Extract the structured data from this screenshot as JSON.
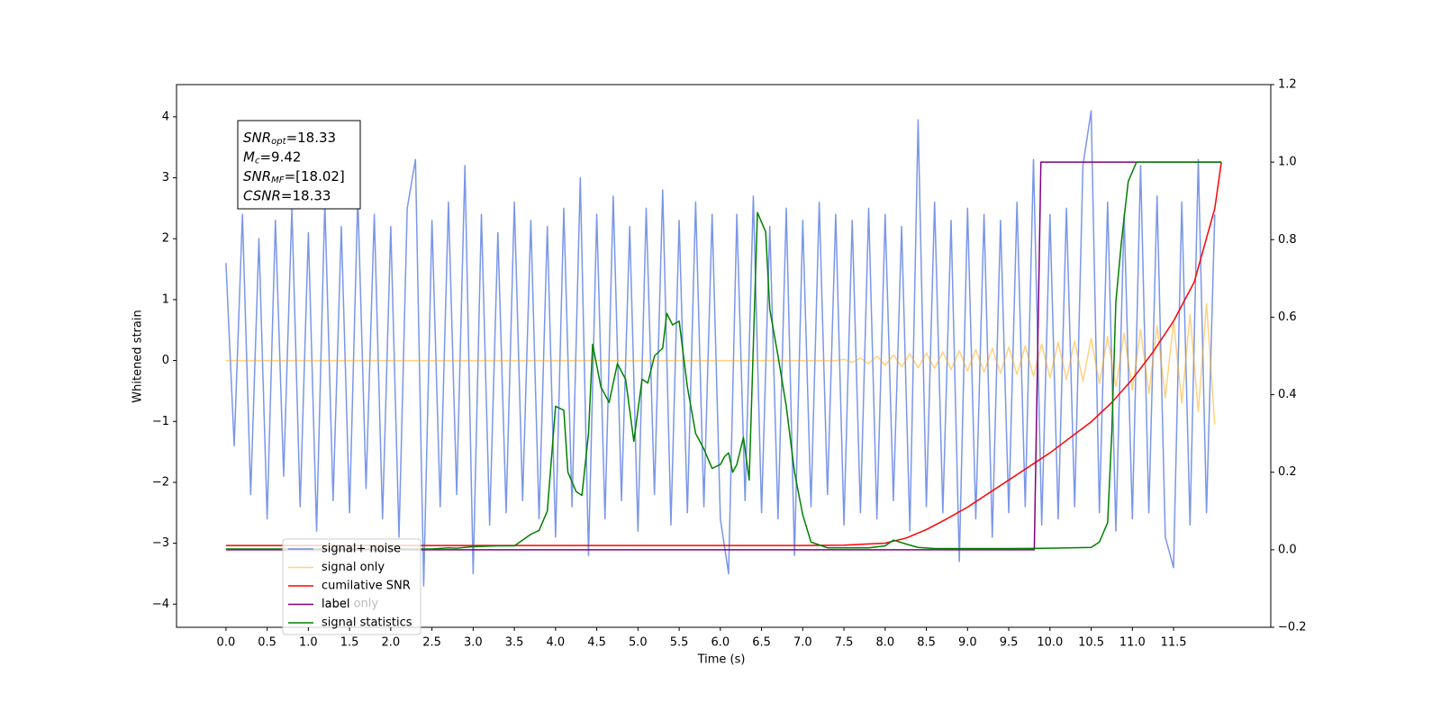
{
  "chart_data": {
    "type": "line",
    "xlabel": "Time (s)",
    "ylabel": "Whitened strain",
    "xlim": [
      -0.6,
      12.68
    ],
    "ylim": [
      -4.38,
      4.53
    ],
    "y2lim": [
      -0.2,
      1.2
    ],
    "xticks": [
      {
        "value": 0,
        "label": "0.0"
      },
      0.5,
      {
        "value": 1,
        "label": "1.0"
      },
      1.5,
      {
        "value": 2,
        "label": "2.0"
      },
      2.5,
      {
        "value": 3,
        "label": "3.0"
      },
      3.5,
      {
        "value": 4,
        "label": "4.0"
      },
      4.5,
      {
        "value": 5,
        "label": "5.0"
      },
      5.5,
      {
        "value": 6,
        "label": "6.0"
      },
      6.5,
      {
        "value": 7,
        "label": "7.0"
      },
      7.5,
      {
        "value": 8,
        "label": "8.0"
      },
      8.5,
      {
        "value": 9,
        "label": "9.0"
      },
      9.5,
      {
        "value": 10,
        "label": "10.0"
      },
      10.5,
      {
        "value": 11,
        "label": "11.0"
      },
      11.5
    ],
    "yticks": [
      {
        "value": -4,
        "label": "−4"
      },
      {
        "value": -3,
        "label": "−3"
      },
      {
        "value": -2,
        "label": "−2"
      },
      {
        "value": -1,
        "label": "−1"
      },
      0,
      1,
      2,
      3,
      4
    ],
    "y2ticks": [
      {
        "value": -0.2,
        "label": "−0.2"
      },
      {
        "value": 0,
        "label": "0.0"
      },
      0.2,
      0.4,
      0.6,
      0.8,
      {
        "value": 1,
        "label": "1.0"
      },
      1.2
    ],
    "legend": "lower left",
    "legend_hidden_text": "label only",
    "annotation": [
      {
        "var": "SNR",
        "sub": "opt",
        "text": "=18.33"
      },
      {
        "var": "M",
        "sub": "c",
        "text": "=9.42"
      },
      {
        "var": "SNR",
        "sub": "MF",
        "text": "=[18.02]"
      },
      {
        "var": "CSNR",
        "text": "=18.33"
      }
    ],
    "x": [
      0,
      0.1,
      0.2,
      0.3,
      0.4,
      0.5,
      0.6,
      0.7,
      0.8,
      0.9,
      1,
      1.1,
      1.2,
      1.3,
      1.4,
      1.5,
      1.6,
      1.7,
      1.8,
      1.9,
      2,
      2.1,
      2.2,
      2.3,
      2.4,
      2.5,
      2.6,
      2.7,
      2.8,
      2.9,
      3,
      3.1,
      3.2,
      3.3,
      3.4,
      3.5,
      3.6,
      3.7,
      3.8,
      3.9,
      4,
      4.1,
      4.2,
      4.3,
      4.4,
      4.5,
      4.6,
      4.7,
      4.8,
      4.9,
      5,
      5.1,
      5.2,
      5.3,
      5.4,
      5.5,
      5.6,
      5.7,
      5.8,
      5.9,
      6,
      6.1,
      6.2,
      6.3,
      6.4,
      6.5,
      6.6,
      6.7,
      6.8,
      6.9,
      7,
      7.1,
      7.2,
      7.3,
      7.4,
      7.5,
      7.6,
      7.7,
      7.8,
      7.9,
      8,
      8.1,
      8.2,
      8.3,
      8.4,
      8.5,
      8.6,
      8.7,
      8.8,
      8.9,
      9,
      9.1,
      9.2,
      9.3,
      9.4,
      9.5,
      9.6,
      9.7,
      9.8,
      9.9,
      10,
      10.1,
      10.2,
      10.3,
      10.4,
      10.5,
      10.6,
      10.7,
      10.8,
      10.9,
      11,
      11.1,
      11.2,
      11.3,
      11.4,
      11.5,
      11.6,
      11.7,
      11.8,
      11.9,
      12
    ],
    "series": [
      {
        "name": "signal+ noise",
        "color": "#4169e1",
        "alpha": 0.7,
        "values": [
          1.6,
          -1.4,
          2.4,
          -2.2,
          2.0,
          -2.6,
          2.3,
          -1.9,
          2.5,
          -2.4,
          2.1,
          -2.8,
          2.6,
          -2.3,
          2.2,
          -2.5,
          2.7,
          -2.1,
          2.4,
          -2.6,
          2.2,
          -2.9,
          2.5,
          3.3,
          -3.7,
          2.3,
          -2.4,
          2.6,
          -2.2,
          3.2,
          -3.5,
          2.4,
          -2.7,
          2.1,
          -2.5,
          2.6,
          -2.3,
          2.3,
          -2.6,
          2.2,
          -2.9,
          2.5,
          -2.4,
          3.0,
          -3.2,
          2.4,
          -2.6,
          2.7,
          -2.3,
          2.2,
          -2.8,
          2.5,
          -2.2,
          2.8,
          -2.7,
          2.3,
          -2.5,
          2.6,
          -2.4,
          2.4,
          -2.6,
          -3.5,
          2.4,
          -2.3,
          2.7,
          -2.5,
          2.2,
          -2.6,
          2.5,
          -3.2,
          2.3,
          -2.4,
          2.6,
          -2.2,
          2.4,
          -2.7,
          2.3,
          -2.5,
          2.5,
          -2.6,
          2.4,
          -2.3,
          2.2,
          -2.8,
          3.95,
          -2.4,
          2.6,
          -2.5,
          2.3,
          -3.3,
          2.5,
          -2.6,
          2.4,
          -2.9,
          2.3,
          -2.5,
          2.6,
          -2.4,
          3.3,
          -2.7,
          2.4,
          -2.6,
          2.5,
          -2.4,
          3.2,
          4.1,
          -2.5,
          2.6,
          -2.8,
          2.4,
          -2.6,
          3.2,
          -2.5,
          2.7,
          -2.9,
          -3.4,
          2.6,
          -2.7,
          3.3,
          -2.5,
          2.4
        ]
      },
      {
        "name": "signal only",
        "color": "#ffa500",
        "alpha": 0.5,
        "values": [
          0,
          0,
          0,
          0,
          0,
          0,
          0,
          0,
          0,
          0,
          0,
          0,
          0,
          0,
          0,
          0,
          0,
          0,
          0,
          0,
          0,
          0,
          0,
          0,
          0,
          0,
          0,
          0,
          0,
          0,
          0,
          0,
          0,
          0,
          0,
          0,
          0,
          0,
          0,
          0,
          0,
          0,
          0,
          0,
          0,
          0,
          0,
          0,
          0,
          0,
          0,
          0,
          0,
          0,
          0,
          0,
          0,
          0,
          0,
          0,
          0,
          0,
          0,
          0,
          0,
          0,
          0,
          0,
          0,
          0,
          0,
          0,
          0,
          0,
          0,
          0.02,
          -0.03,
          0.04,
          -0.05,
          0.07,
          -0.08,
          0.09,
          -0.1,
          0.11,
          -0.12,
          0.12,
          -0.13,
          0.14,
          -0.15,
          0.16,
          -0.17,
          0.18,
          -0.19,
          0.2,
          -0.21,
          0.22,
          -0.23,
          0.24,
          -0.26,
          0.27,
          -0.28,
          0.3,
          -0.31,
          0.32,
          -0.34,
          0.36,
          -0.38,
          0.4,
          -0.43,
          0.45,
          -0.48,
          0.51,
          -0.54,
          0.57,
          -0.61,
          0.65,
          -0.7,
          0.76,
          -0.84,
          0.94,
          -1.05
        ]
      },
      {
        "name": "cumilative SNR",
        "color": "#ff0000",
        "axis": "y2",
        "x": [
          0,
          1,
          2,
          3,
          4,
          5,
          6,
          7,
          7.5,
          8,
          8.25,
          8.5,
          8.75,
          9,
          9.25,
          9.5,
          9.75,
          10,
          10.25,
          10.5,
          10.75,
          11,
          11.25,
          11.5,
          11.75,
          12,
          12.08
        ],
        "values": [
          0.011,
          0.011,
          0.011,
          0.011,
          0.011,
          0.011,
          0.011,
          0.011,
          0.012,
          0.017,
          0.03,
          0.052,
          0.08,
          0.11,
          0.145,
          0.18,
          0.215,
          0.25,
          0.29,
          0.33,
          0.38,
          0.44,
          0.51,
          0.59,
          0.69,
          0.88,
          1.0
        ]
      },
      {
        "name": "label",
        "color": "#800080",
        "axis": "y2",
        "x": [
          0,
          9.81,
          9.89,
          12.08
        ],
        "values": [
          0,
          0,
          1,
          1
        ]
      },
      {
        "name": "signal statistics",
        "color": "#008000",
        "axis": "y2",
        "x": [
          0,
          0.5,
          1,
          1.5,
          2,
          2.5,
          2.7,
          2.8,
          3,
          3.3,
          3.5,
          3.6,
          3.7,
          3.8,
          3.9,
          4,
          4.1,
          4.15,
          4.25,
          4.32,
          4.4,
          4.45,
          4.55,
          4.65,
          4.75,
          4.85,
          4.95,
          5.05,
          5.12,
          5.2,
          5.3,
          5.35,
          5.42,
          5.5,
          5.6,
          5.7,
          5.8,
          5.9,
          6,
          6.05,
          6.1,
          6.15,
          6.2,
          6.28,
          6.35,
          6.45,
          6.55,
          6.6,
          6.7,
          6.8,
          6.9,
          7,
          7.1,
          7.3,
          7.8,
          8,
          8.1,
          8.25,
          8.4,
          8.6,
          9,
          9.5,
          10,
          10.5,
          10.6,
          10.7,
          10.75,
          10.8,
          10.87,
          10.95,
          11.05,
          11.15,
          12.08
        ],
        "values": [
          0.002,
          0.002,
          0.002,
          0.002,
          0.002,
          0.002,
          0.005,
          0.004,
          0.008,
          0.01,
          0.01,
          0.025,
          0.04,
          0.05,
          0.1,
          0.37,
          0.36,
          0.2,
          0.15,
          0.14,
          0.3,
          0.53,
          0.42,
          0.38,
          0.48,
          0.44,
          0.28,
          0.44,
          0.43,
          0.5,
          0.52,
          0.61,
          0.58,
          0.59,
          0.42,
          0.3,
          0.26,
          0.21,
          0.22,
          0.24,
          0.25,
          0.2,
          0.22,
          0.29,
          0.18,
          0.87,
          0.82,
          0.62,
          0.5,
          0.37,
          0.2,
          0.09,
          0.02,
          0.005,
          0.005,
          0.01,
          0.025,
          0.015,
          0.006,
          0.003,
          0.003,
          0.003,
          0.004,
          0.006,
          0.02,
          0.07,
          0.3,
          0.64,
          0.8,
          0.95,
          1.0,
          1.0,
          1.0
        ]
      }
    ]
  }
}
